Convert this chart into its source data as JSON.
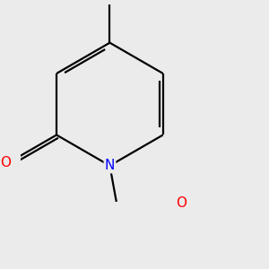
{
  "bg_color": "#ebebeb",
  "bond_color": "#000000",
  "atom_colors": {
    "O": "#ff0000",
    "N": "#0000ff",
    "C": "#000000"
  },
  "font_size_atoms": 11,
  "font_size_ch3": 9,
  "line_width": 1.6,
  "figsize": [
    3.0,
    3.0
  ],
  "dpi": 100
}
